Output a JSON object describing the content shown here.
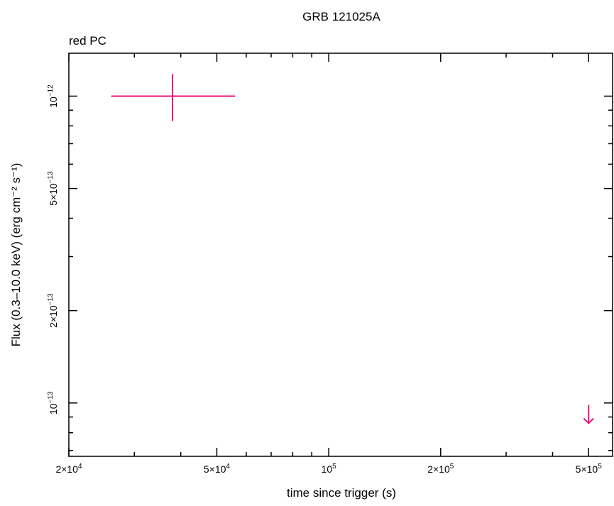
{
  "chart_data": {
    "type": "scatter",
    "title": "GRB 121025A",
    "subtitle": "red PC",
    "xlabel": "time since trigger (s)",
    "ylabel": "Flux (0.3–10.0 keV) (erg cm⁻² s⁻¹)",
    "x_scale": "log",
    "y_scale": "log",
    "xlim": [
      20000,
      580000
    ],
    "ylim": [
      6.7e-14,
      1.38e-12
    ],
    "x_ticks": [
      {
        "value": 20000,
        "mantissa": "2×10",
        "exp": "4"
      },
      {
        "value": 50000,
        "mantissa": "5×10",
        "exp": "4"
      },
      {
        "value": 100000,
        "mantissa": "10",
        "exp": "5"
      },
      {
        "value": 200000,
        "mantissa": "2×10",
        "exp": "5"
      },
      {
        "value": 500000,
        "mantissa": "5×10",
        "exp": "5"
      }
    ],
    "y_ticks": [
      {
        "value": 1e-12,
        "mantissa": "10",
        "exp": "−12"
      },
      {
        "value": 5e-13,
        "mantissa": "5×10",
        "exp": "−13"
      },
      {
        "value": 2e-13,
        "mantissa": "2×10",
        "exp": "−13"
      },
      {
        "value": 1e-13,
        "mantissa": "10",
        "exp": "−13"
      }
    ],
    "series": [
      {
        "color": "#e8157f",
        "points": [
          {
            "x": 38000,
            "x_lo": 26000,
            "x_hi": 56000,
            "y": 1e-12,
            "y_lo": 8.3e-13,
            "y_hi": 1.18e-12
          }
        ],
        "upper_limits": [
          {
            "x": 500000,
            "y": 9.2e-14
          }
        ]
      }
    ],
    "grid": false,
    "legend": "none"
  }
}
